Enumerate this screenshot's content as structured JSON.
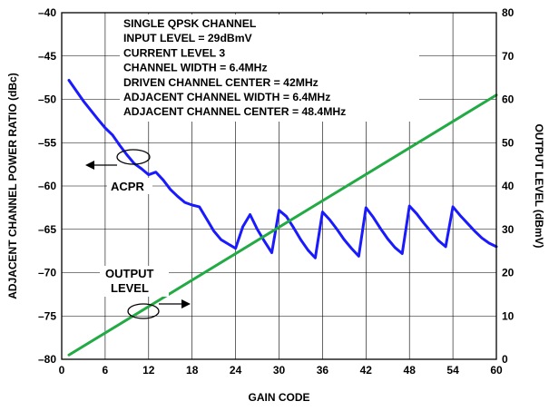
{
  "chart_data": {
    "type": "line",
    "xlabel": "GAIN CODE",
    "ylabel_left": "ADJACENT CHANNEL POWER RATIO (dBc)",
    "ylabel_right": "OUTPUT LEVEL (dBmV)",
    "xlim": [
      0,
      60
    ],
    "ylim_left": [
      -80,
      -40
    ],
    "ylim_right": [
      0,
      80
    ],
    "x_ticks": [
      0,
      6,
      12,
      18,
      24,
      30,
      36,
      42,
      48,
      54,
      60
    ],
    "y_ticks_left": [
      -40,
      -45,
      -50,
      -55,
      -60,
      -65,
      -70,
      -75,
      -80
    ],
    "y_ticks_right": [
      80,
      70,
      60,
      50,
      40,
      30,
      20,
      10,
      0
    ],
    "grid": true,
    "annotation_lines": [
      "SINGLE QPSK CHANNEL",
      "INPUT LEVEL = 29dBmV",
      "CURRENT LEVEL 3",
      "CHANNEL WIDTH = 6.4MHz",
      "DRIVEN CHANNEL CENTER = 42MHz",
      "ADJACENT CHANNEL WIDTH = 6.4MHz",
      "ADJACENT CHANNEL CENTER = 48.4MHz"
    ],
    "callouts": {
      "acpr": "ACPR",
      "output_line1": "OUTPUT",
      "output_line2": "LEVEL"
    },
    "series": [
      {
        "axis": "left",
        "color": "#1a1aff",
        "x": [
          1,
          3,
          5,
          6,
          7,
          8,
          9,
          10,
          11,
          12,
          13,
          14,
          15,
          16,
          17,
          18,
          19,
          20,
          21,
          22,
          23,
          24,
          25,
          26,
          27,
          28,
          29,
          30,
          31,
          32,
          33,
          34,
          35,
          36,
          37,
          38,
          39,
          40,
          41,
          42,
          43,
          44,
          45,
          46,
          47,
          48,
          49,
          50,
          51,
          52,
          53,
          54,
          55,
          56,
          57,
          58,
          59,
          60
        ],
        "values": [
          -47.8,
          -50.2,
          -52.3,
          -53.3,
          -54.1,
          -55.3,
          -56.4,
          -57.4,
          -58.0,
          -58.7,
          -58.4,
          -59.3,
          -60.4,
          -61.2,
          -61.9,
          -62.2,
          -62.4,
          -63.8,
          -65.2,
          -66.2,
          -66.7,
          -67.2,
          -64.7,
          -63.3,
          -65.0,
          -66.4,
          -67.7,
          -62.8,
          -63.5,
          -64.8,
          -66.2,
          -67.4,
          -68.3,
          -63.0,
          -63.9,
          -65.0,
          -66.2,
          -67.2,
          -68.1,
          -62.5,
          -63.6,
          -64.9,
          -66.1,
          -67.1,
          -67.8,
          -62.3,
          -63.2,
          -64.3,
          -65.3,
          -66.3,
          -67.0,
          -62.4,
          -63.4,
          -64.3,
          -65.2,
          -66.0,
          -66.6,
          -67.0
        ]
      },
      {
        "axis": "right",
        "color": "#22aa44",
        "x": [
          1,
          60
        ],
        "values": [
          1.0,
          61.0
        ]
      }
    ]
  }
}
